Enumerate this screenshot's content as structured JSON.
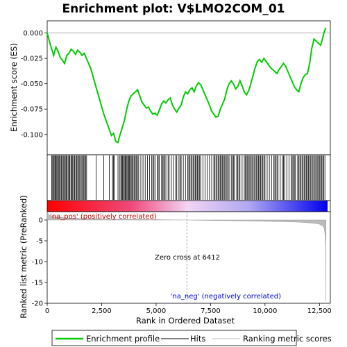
{
  "chart_data": {
    "type": "line",
    "title": "Enrichment plot: V$LMO2COM_01",
    "top_panel": {
      "ylabel": "Enrichment score (ES)",
      "ylim": [
        -0.12,
        0.012
      ],
      "yticks": [
        0.0,
        -0.025,
        -0.05,
        -0.075,
        -0.1
      ],
      "ytick_labels": [
        "0.000",
        "-0.025",
        "-0.050",
        "-0.075",
        "-0.100"
      ],
      "series": [
        {
          "name": "Enrichment profile",
          "color": "#00cc00",
          "x": [
            0,
            150,
            300,
            400,
            500,
            600,
            700,
            800,
            900,
            1000,
            1100,
            1200,
            1300,
            1400,
            1500,
            1600,
            1700,
            1800,
            2000,
            2200,
            2400,
            2600,
            2800,
            2950,
            3050,
            3150,
            3250,
            3350,
            3450,
            3550,
            3650,
            3750,
            3850,
            3950,
            4050,
            4150,
            4250,
            4350,
            4450,
            4550,
            4650,
            4750,
            4850,
            4950,
            5050,
            5150,
            5250,
            5350,
            5450,
            5550,
            5650,
            5750,
            5850,
            5950,
            6050,
            6150,
            6250,
            6350,
            6450,
            6550,
            6650,
            6750,
            6850,
            6950,
            7050,
            7150,
            7250,
            7350,
            7450,
            7550,
            7650,
            7750,
            7850,
            7950,
            8050,
            8150,
            8250,
            8350,
            8450,
            8550,
            8650,
            8750,
            8850,
            8950,
            9050,
            9150,
            9250,
            9350,
            9450,
            9550,
            9650,
            9750,
            9850,
            9950,
            10050,
            10150,
            10250,
            10350,
            10450,
            10550,
            10650,
            10750,
            10850,
            10950,
            11050,
            11150,
            11250,
            11350,
            11450,
            11550,
            11650,
            11750,
            11850,
            11950,
            12050,
            12150,
            12250,
            12350,
            12450,
            12550,
            12650,
            12700,
            12750,
            12800
          ],
          "y": [
            0.0,
            -0.012,
            -0.022,
            -0.014,
            -0.018,
            -0.024,
            -0.027,
            -0.03,
            -0.022,
            -0.02,
            -0.016,
            -0.018,
            -0.021,
            -0.017,
            -0.019,
            -0.022,
            -0.02,
            -0.025,
            -0.035,
            -0.05,
            -0.065,
            -0.08,
            -0.092,
            -0.101,
            -0.099,
            -0.107,
            -0.108,
            -0.1,
            -0.093,
            -0.086,
            -0.075,
            -0.067,
            -0.062,
            -0.06,
            -0.058,
            -0.056,
            -0.062,
            -0.068,
            -0.071,
            -0.074,
            -0.073,
            -0.077,
            -0.08,
            -0.079,
            -0.081,
            -0.076,
            -0.07,
            -0.067,
            -0.069,
            -0.066,
            -0.064,
            -0.071,
            -0.075,
            -0.078,
            -0.074,
            -0.071,
            -0.063,
            -0.058,
            -0.06,
            -0.056,
            -0.054,
            -0.058,
            -0.052,
            -0.049,
            -0.051,
            -0.056,
            -0.061,
            -0.066,
            -0.071,
            -0.077,
            -0.08,
            -0.083,
            -0.082,
            -0.075,
            -0.07,
            -0.065,
            -0.056,
            -0.05,
            -0.047,
            -0.05,
            -0.055,
            -0.053,
            -0.047,
            -0.052,
            -0.058,
            -0.061,
            -0.057,
            -0.05,
            -0.042,
            -0.034,
            -0.028,
            -0.026,
            -0.029,
            -0.025,
            -0.028,
            -0.031,
            -0.034,
            -0.036,
            -0.038,
            -0.04,
            -0.036,
            -0.033,
            -0.03,
            -0.033,
            -0.038,
            -0.043,
            -0.048,
            -0.053,
            -0.056,
            -0.058,
            -0.05,
            -0.044,
            -0.041,
            -0.04,
            -0.03,
            -0.015,
            -0.006,
            -0.008,
            -0.01,
            -0.012,
            -0.005,
            0.0,
            0.003,
            0.005
          ]
        }
      ]
    },
    "hits_panel": {
      "hits": [
        210,
        250,
        280,
        320,
        360,
        400,
        440,
        470,
        520,
        560,
        610,
        650,
        700,
        740,
        790,
        830,
        870,
        910,
        960,
        1000,
        1040,
        1090,
        1130,
        1170,
        1220,
        1260,
        1310,
        1350,
        1400,
        1440,
        1490,
        1540,
        1590,
        1630,
        1680,
        1720,
        1770,
        1810,
        2250,
        2600,
        2850,
        3000,
        3040,
        3080,
        3250,
        3320,
        3380,
        3420,
        3460,
        3500,
        3540,
        3580,
        3620,
        3660,
        3700,
        3740,
        3780,
        3820,
        3860,
        3900,
        3950,
        4000,
        4050,
        4100,
        4150,
        4200,
        4300,
        4400,
        4500,
        4600,
        4700,
        4800,
        4850,
        4900,
        4950,
        5050,
        5100,
        5150,
        5250,
        5300,
        5350,
        5400,
        5450,
        5550,
        5600,
        5700,
        5800,
        5900,
        5950,
        6050,
        6100,
        6150,
        6250,
        6350,
        6450,
        6500,
        6550,
        6600,
        6650,
        6700,
        6750,
        6800,
        6850,
        6900,
        6950,
        7000,
        7050,
        7150,
        7250,
        7350,
        7450,
        7550,
        7650,
        7700,
        7750,
        7800,
        7850,
        7900,
        7950,
        8000,
        8050,
        8100,
        8150,
        8200,
        8250,
        8300,
        8350,
        8450,
        8500,
        8550,
        8600,
        8700,
        8750,
        8800,
        8850,
        8950,
        9050,
        9100,
        9150,
        9200,
        9250,
        9300,
        9350,
        9400,
        9450,
        9500,
        9550,
        9600,
        9650,
        9700,
        9750,
        9800,
        9850,
        9900,
        9950,
        10000,
        10100,
        10200,
        10300,
        10400,
        10450,
        10500,
        10550,
        10600,
        10700,
        10800,
        10850,
        10900,
        11000,
        11100,
        11200,
        11250,
        11300,
        11350,
        11400,
        11500,
        11550,
        11600,
        11650,
        11700,
        11750,
        11800,
        11850,
        11900,
        11950,
        12000,
        12050,
        12100,
        12150,
        12200,
        12250,
        12300,
        12350,
        12400,
        12450,
        12500,
        12550,
        12600,
        12650,
        12700,
        12750
      ]
    },
    "bottom_panel": {
      "ylabel": "Ranked list metric (PreRanked)",
      "ylim": [
        -20,
        2
      ],
      "yticks": [
        0,
        -5,
        -10,
        -15,
        -20
      ],
      "ytick_labels": [
        "0",
        "-5",
        "-10",
        "-15",
        "-20"
      ],
      "metric_x": [
        0,
        50,
        150,
        300,
        600,
        1000,
        2000,
        3000,
        4000,
        5000,
        6000,
        6412,
        7000,
        8000,
        9000,
        10000,
        11000,
        11500,
        12000,
        12300,
        12500,
        12650,
        12720,
        12760,
        12790,
        12800
      ],
      "metric_y": [
        2.0,
        1.3,
        1.0,
        0.8,
        0.6,
        0.45,
        0.3,
        0.2,
        0.12,
        0.07,
        0.02,
        0.0,
        -0.05,
        -0.12,
        -0.2,
        -0.3,
        -0.42,
        -0.5,
        -0.65,
        -0.8,
        -1.0,
        -1.4,
        -2.0,
        -3.5,
        -6.0,
        -19.5
      ],
      "zero_cross_label": "Zero cross at 6412",
      "zero_cross": 6412,
      "pos_label": "'na_pos' (positively correlated)",
      "neg_label": "'na_neg' (negatively correlated)",
      "pos_color": "#cc0000",
      "neg_color": "#0000cc"
    },
    "xlabel": "Rank in Ordered Dataset",
    "xlim": [
      0,
      13000
    ],
    "xticks": [
      0,
      2500,
      5000,
      7500,
      10000,
      12500
    ],
    "xtick_labels": [
      "0",
      "2,500",
      "5,000",
      "7,500",
      "10,000",
      "12,500"
    ],
    "legend": {
      "placement": "bottom",
      "entries": [
        {
          "label": "Enrichment profile",
          "color": "#00cc00"
        },
        {
          "label": "Hits",
          "color": "#000000"
        },
        {
          "label": "Ranking metric scores",
          "color": "#bbbbbb"
        }
      ]
    }
  }
}
